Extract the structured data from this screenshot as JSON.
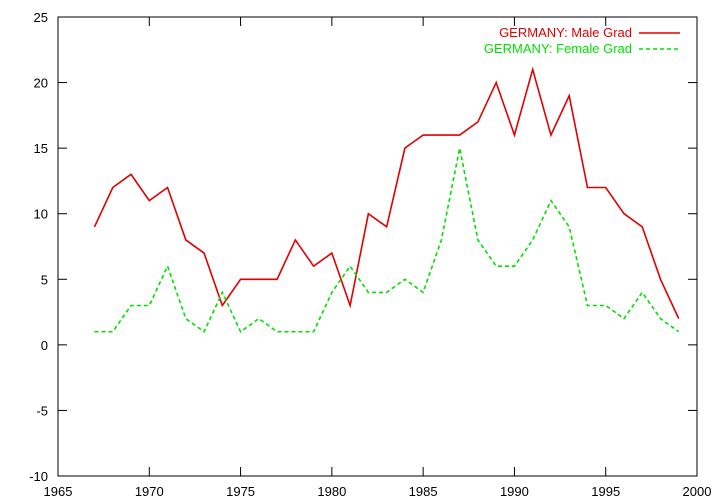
{
  "chart_data": {
    "type": "line",
    "title": "",
    "xlabel": "",
    "ylabel": "",
    "xlim": [
      1965,
      2000
    ],
    "ylim": [
      -10,
      25
    ],
    "xticks": [
      1965,
      1970,
      1975,
      1980,
      1985,
      1990,
      1995,
      2000
    ],
    "yticks": [
      -10,
      -5,
      0,
      5,
      10,
      15,
      20,
      25
    ],
    "grid": false,
    "legend_position": "top-right",
    "x": [
      1967,
      1968,
      1969,
      1970,
      1971,
      1972,
      1973,
      1974,
      1975,
      1976,
      1977,
      1978,
      1979,
      1980,
      1981,
      1982,
      1983,
      1984,
      1985,
      1986,
      1987,
      1988,
      1989,
      1990,
      1991,
      1992,
      1993,
      1994,
      1995,
      1996,
      1997,
      1998,
      1999
    ],
    "series": [
      {
        "name": "GERMANY: Male Grad",
        "color": "#e00000",
        "style": "solid",
        "values": [
          9,
          12,
          13,
          11,
          12,
          8,
          7,
          3,
          5,
          5,
          5,
          8,
          6,
          7,
          3,
          10,
          9,
          15,
          16,
          16,
          16,
          17,
          20,
          16,
          21,
          16,
          19,
          12,
          12,
          10,
          9,
          5,
          2
        ]
      },
      {
        "name": "GERMANY: Female Grad",
        "color": "#00e000",
        "style": "dashed",
        "values": [
          1,
          1,
          3,
          3,
          6,
          2,
          1,
          4,
          1,
          2,
          1,
          1,
          1,
          4,
          6,
          4,
          4,
          5,
          4,
          8,
          15,
          8,
          6,
          6,
          8,
          11,
          9,
          3,
          3,
          2,
          4,
          2,
          1
        ]
      }
    ]
  }
}
